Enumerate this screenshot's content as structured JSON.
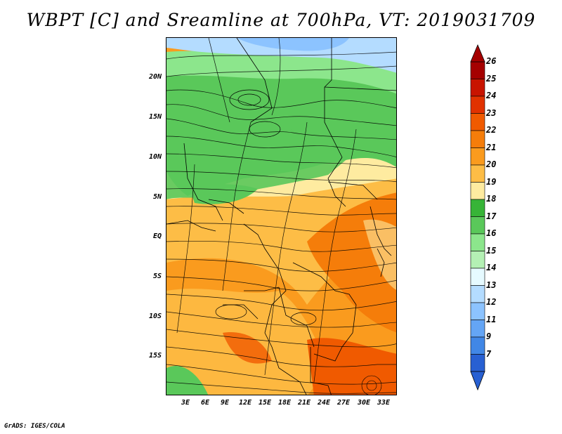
{
  "title": "WBPT [C] and Sreamline at 700hPa, VT: 2019031709",
  "credit": "GrADS: IGES/COLA",
  "latitude_labels": [
    "20N",
    "15N",
    "10N",
    "5N",
    "EQ",
    "5S",
    "10S",
    "15S"
  ],
  "longitude_labels": [
    "3E",
    "6E",
    "9E",
    "12E",
    "15E",
    "18E",
    "21E",
    "24E",
    "27E",
    "30E",
    "33E"
  ],
  "colorbar": {
    "labels": [
      "26",
      "25",
      "24",
      "23",
      "22",
      "21",
      "20",
      "19",
      "18",
      "17",
      "16",
      "15",
      "14",
      "13",
      "12",
      "11",
      "9",
      "7"
    ],
    "colors": [
      "#a50000",
      "#c81400",
      "#e13200",
      "#f05a00",
      "#f57d0a",
      "#fa9b1e",
      "#fdbd46",
      "#feeba0",
      "#37b437",
      "#5ac85a",
      "#8ce68c",
      "#b4f0b4",
      "#e6faff",
      "#b4dcff",
      "#8cc3ff",
      "#64a5f5",
      "#4187e6",
      "#2860d2"
    ]
  },
  "map": {
    "colors": {
      "green": "#5ac85a",
      "light_green": "#8ce68c",
      "yellow": "#feeba0",
      "light_orange": "#fdbd46",
      "orange": "#fa9b1e",
      "dark_orange": "#f57d0a",
      "red_orange": "#f05a00",
      "light_blue": "#b4dcff",
      "blue": "#8cc3ff"
    }
  }
}
